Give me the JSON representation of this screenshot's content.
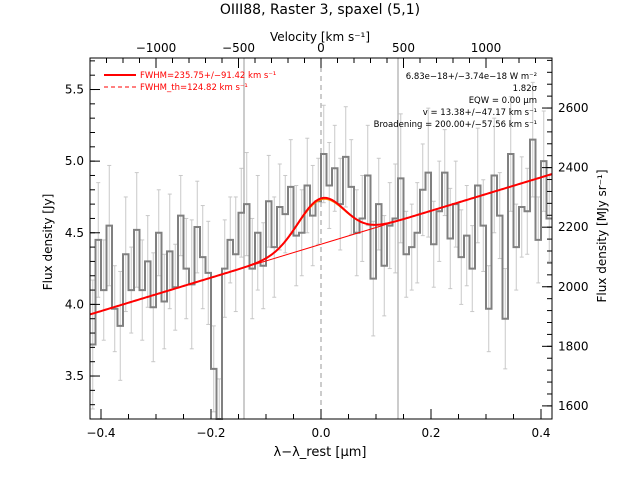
{
  "chart_data": {
    "type": "line",
    "title": "OIII88, Raster 3, spaxel (5,1)",
    "xlabel": "λ−λ_rest [μm]",
    "ylabel_left": "Flux density [Jy]",
    "ylabel_right": "Flux density [MJy sr⁻¹]",
    "top_axis_label": "Velocity [km s⁻¹]",
    "xlim": [
      -0.42,
      0.42
    ],
    "ylim": [
      3.2,
      5.72
    ],
    "right_ylim": [
      1556,
      2768
    ],
    "top_xlim": [
      -1400,
      1400
    ],
    "x_ticks": [
      -0.4,
      -0.2,
      0.0,
      0.2,
      0.4
    ],
    "x_tick_labels": [
      "−0.4",
      "−0.2",
      "0.0",
      "0.2",
      "0.4"
    ],
    "y_ticks": [
      3.5,
      4.0,
      4.5,
      5.0,
      5.5
    ],
    "y_tick_labels": [
      "3.5",
      "4.0",
      "4.5",
      "5.0",
      "5.5"
    ],
    "right_ticks": [
      1600,
      1800,
      2000,
      2200,
      2400,
      2600
    ],
    "right_tick_labels": [
      "1600",
      "1800",
      "2000",
      "2200",
      "2400",
      "2600"
    ],
    "top_ticks": [
      -1000,
      -500,
      0,
      500,
      1000
    ],
    "top_tick_labels": [
      "−1000",
      "−500",
      "0",
      "500",
      "1000"
    ],
    "vertical_lines": [
      -0.14,
      0.14
    ],
    "center_line": 0.0,
    "legend": [
      {
        "label": "FWHM=235.75+/−91.42 km s⁻¹",
        "color": "#ff0000",
        "dash": "solid"
      },
      {
        "label": "FWHM_th=124.82 km s⁻¹",
        "color": "#ff0000",
        "dash": "dashed"
      }
    ],
    "annotations": [
      "6.83e−18+/−3.74e−18 W m⁻²",
      "1.82σ",
      "EQW = 0.00 μm",
      "v = 13.38+/−47.17 km s⁻¹",
      "Broadening = 200.00+/−57.56 km s⁻¹"
    ],
    "fit": {
      "continuum": [
        [
          -0.42,
          3.93
        ],
        [
          0.42,
          4.91
        ]
      ],
      "line_center": 0.0,
      "line_amplitude": 0.32,
      "line_sigma": 0.042
    },
    "colors": {
      "data": "#808080",
      "errorbars": "#c8c8c8",
      "fit": "#ff0000",
      "component": "#ff8c00",
      "vlines": "#999999"
    },
    "series": [
      {
        "x": [
          -0.415,
          -0.405,
          -0.395,
          -0.385,
          -0.375,
          -0.365,
          -0.355,
          -0.345,
          -0.335,
          -0.325,
          -0.315,
          -0.305,
          -0.295,
          -0.285,
          -0.275,
          -0.265,
          -0.255,
          -0.245,
          -0.235,
          -0.225,
          -0.215,
          -0.205,
          -0.195,
          -0.185,
          -0.175,
          -0.165,
          -0.155,
          -0.145,
          -0.135,
          -0.125,
          -0.115,
          -0.105,
          -0.095,
          -0.085,
          -0.075,
          -0.065,
          -0.055,
          -0.045,
          -0.035,
          -0.025,
          -0.015,
          -0.005,
          0.005,
          0.015,
          0.025,
          0.035,
          0.045,
          0.055,
          0.065,
          0.075,
          0.085,
          0.095,
          0.105,
          0.115,
          0.125,
          0.135,
          0.145,
          0.155,
          0.165,
          0.175,
          0.185,
          0.195,
          0.205,
          0.215,
          0.225,
          0.235,
          0.245,
          0.255,
          0.265,
          0.275,
          0.285,
          0.295,
          0.305,
          0.315,
          0.325,
          0.335,
          0.345,
          0.355,
          0.365,
          0.375,
          0.385,
          0.395,
          0.405,
          0.415
        ],
        "y": [
          3.72,
          4.45,
          4.1,
          4.55,
          3.97,
          3.85,
          4.35,
          4.1,
          4.52,
          4.1,
          4.3,
          3.98,
          4.5,
          4.02,
          4.37,
          4.12,
          4.62,
          4.25,
          4.14,
          4.54,
          4.33,
          4.22,
          3.55,
          3.2,
          4.25,
          4.45,
          4.35,
          4.64,
          4.7,
          4.25,
          4.5,
          4.27,
          4.72,
          4.4,
          4.68,
          4.63,
          4.82,
          4.48,
          4.5,
          4.83,
          4.62,
          4.72,
          5.05,
          4.83,
          4.95,
          4.7,
          5.03,
          4.82,
          4.5,
          4.6,
          4.9,
          4.18,
          4.7,
          4.27,
          4.55,
          4.6,
          4.88,
          4.35,
          4.4,
          4.5,
          4.8,
          4.92,
          4.42,
          4.65,
          4.92,
          4.46,
          4.7,
          4.33,
          4.48,
          4.25,
          4.83,
          4.55,
          3.97,
          4.9,
          4.62,
          3.9,
          5.05,
          4.4,
          4.68,
          4.65,
          5.15,
          4.45,
          5.0,
          4.6
        ],
        "err": [
          0.45,
          0.4,
          0.35,
          0.42,
          0.3,
          0.38,
          0.4,
          0.3,
          0.4,
          0.35,
          0.32,
          0.38,
          0.3,
          0.33,
          0.4,
          0.3,
          0.28,
          0.35,
          0.45,
          0.32,
          0.36,
          0.36,
          0.3,
          0.28,
          0.34,
          0.3,
          0.4,
          0.31,
          0.36,
          0.35,
          0.4,
          0.3,
          0.32,
          0.35,
          0.3,
          0.27,
          0.33,
          0.35,
          0.3,
          0.33,
          0.35,
          0.3,
          0.34,
          0.3,
          0.3,
          0.32,
          0.35,
          0.33,
          0.3,
          0.3,
          0.35,
          0.4,
          0.32,
          0.35,
          0.3,
          0.38,
          0.45,
          0.3,
          0.3,
          0.35,
          0.32,
          0.45,
          0.3,
          0.35,
          0.3,
          0.35,
          0.3,
          0.33,
          0.35,
          0.3,
          0.4,
          0.32,
          0.3,
          0.4,
          0.3,
          0.35,
          0.4,
          0.3,
          0.35,
          0.3,
          0.4,
          0.3,
          0.35,
          0.3
        ]
      }
    ]
  }
}
